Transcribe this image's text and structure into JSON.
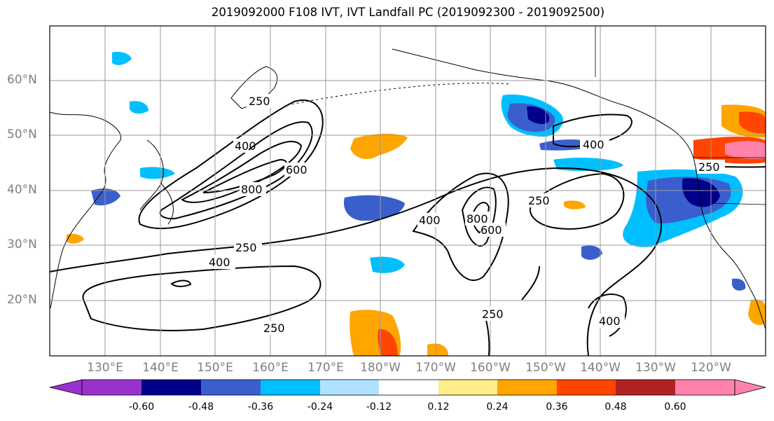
{
  "title": "2019092000 F108 IVT, IVT Landfall PC (2019092300 - 2019092500)",
  "lat_ticks": [
    "60°N",
    "50°N",
    "40°N",
    "30°N",
    "20°N"
  ],
  "lon_ticks": [
    "130°E",
    "140°E",
    "150°E",
    "160°E",
    "170°E",
    "180°W",
    "170°W",
    "160°W",
    "150°W",
    "140°W",
    "130°W",
    "120°W"
  ],
  "contour_labels": [
    "250",
    "400",
    "600",
    "800"
  ],
  "colorbar": {
    "tick_labels": [
      "-0.60",
      "-0.48",
      "-0.36",
      "-0.24",
      "-0.12",
      "0.12",
      "0.24",
      "0.36",
      "0.48",
      "0.60"
    ],
    "colors": [
      "#9932cc",
      "#00008b",
      "#3a5fcd",
      "#00bfff",
      "#b0e2ff",
      "#ffffff",
      "#ffec8b",
      "#ffa500",
      "#ff4500",
      "#b22222",
      "#ff82ab"
    ]
  }
}
